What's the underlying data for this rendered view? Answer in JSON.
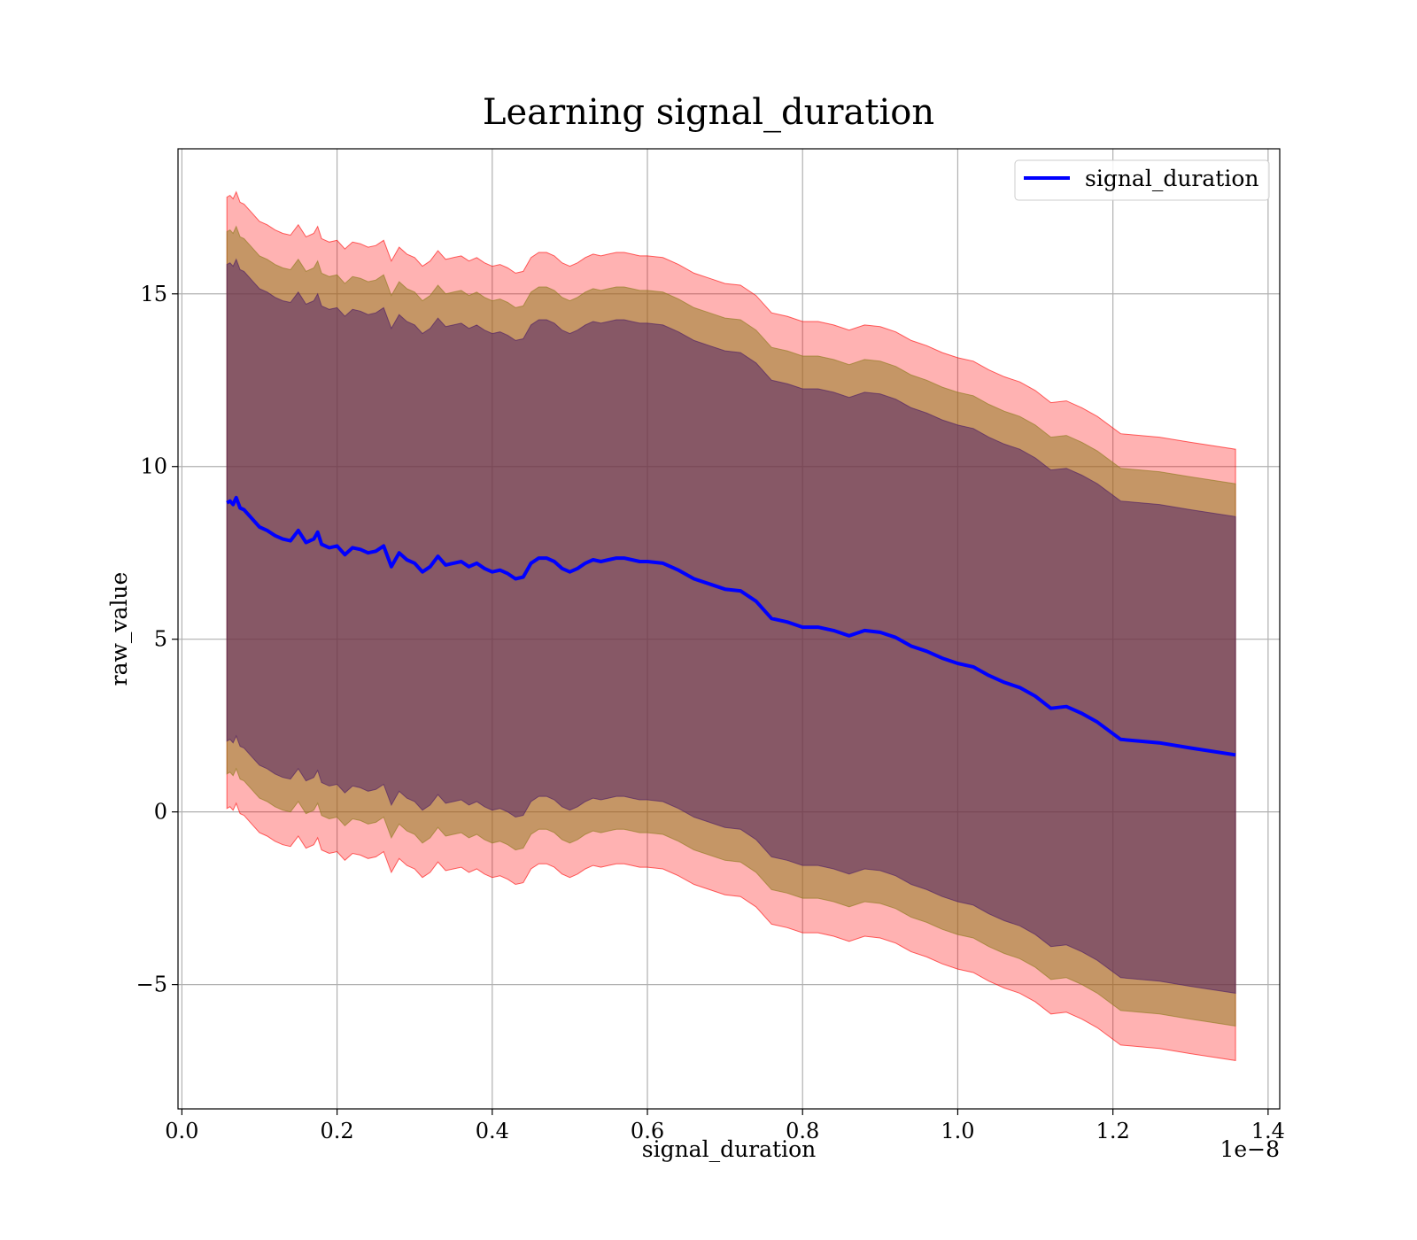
{
  "chart_data": {
    "type": "area",
    "title": "Learning signal_duration",
    "xlabel": "signal_duration",
    "ylabel": "raw_value",
    "x_offset_label": "1e−8",
    "xlim": [
      -0.005,
      1.415
    ],
    "ylim": [
      -8.6,
      19.2
    ],
    "xticks": [
      {
        "value": 0.0,
        "label": "0.0"
      },
      {
        "value": 0.2,
        "label": "0.2"
      },
      {
        "value": 0.4,
        "label": "0.4"
      },
      {
        "value": 0.6,
        "label": "0.6"
      },
      {
        "value": 0.8,
        "label": "0.8"
      },
      {
        "value": 1.0,
        "label": "1.0"
      },
      {
        "value": 1.2,
        "label": "1.2"
      },
      {
        "value": 1.4,
        "label": "1.4"
      }
    ],
    "yticks": [
      {
        "value": -5,
        "label": "−5"
      },
      {
        "value": 0,
        "label": "0"
      },
      {
        "value": 5,
        "label": "5"
      },
      {
        "value": 10,
        "label": "10"
      },
      {
        "value": 15,
        "label": "15"
      }
    ],
    "grid": true,
    "legend_position": "top-right",
    "colors": {
      "line": "#0000ff",
      "band_outer": "#ff0000",
      "band_middle": "#8c7a1a",
      "band_inner": "#4a1a66",
      "grid": "#b0b0b0"
    },
    "band_half_widths": {
      "inner": 6.9,
      "middle": 7.85,
      "outer": 8.85
    },
    "x": [
      0.058,
      0.062,
      0.066,
      0.07,
      0.075,
      0.08,
      0.09,
      0.1,
      0.11,
      0.12,
      0.13,
      0.14,
      0.15,
      0.16,
      0.17,
      0.175,
      0.18,
      0.19,
      0.2,
      0.21,
      0.22,
      0.23,
      0.24,
      0.25,
      0.26,
      0.27,
      0.28,
      0.29,
      0.3,
      0.31,
      0.32,
      0.33,
      0.34,
      0.35,
      0.36,
      0.37,
      0.38,
      0.39,
      0.4,
      0.41,
      0.42,
      0.43,
      0.44,
      0.45,
      0.46,
      0.47,
      0.48,
      0.49,
      0.5,
      0.51,
      0.52,
      0.53,
      0.54,
      0.55,
      0.56,
      0.57,
      0.58,
      0.59,
      0.6,
      0.62,
      0.64,
      0.66,
      0.68,
      0.7,
      0.72,
      0.74,
      0.76,
      0.78,
      0.8,
      0.82,
      0.84,
      0.86,
      0.88,
      0.9,
      0.92,
      0.94,
      0.96,
      0.98,
      1.0,
      1.02,
      1.04,
      1.06,
      1.08,
      1.1,
      1.12,
      1.14,
      1.16,
      1.18,
      1.21,
      1.26,
      1.3,
      1.358
    ],
    "series": [
      {
        "name": "signal_duration",
        "values": [
          8.95,
          9.0,
          8.9,
          9.1,
          8.8,
          8.75,
          8.5,
          8.25,
          8.15,
          8.0,
          7.9,
          7.85,
          8.15,
          7.8,
          7.9,
          8.1,
          7.75,
          7.65,
          7.7,
          7.45,
          7.65,
          7.6,
          7.5,
          7.55,
          7.7,
          7.1,
          7.5,
          7.3,
          7.2,
          6.95,
          7.1,
          7.4,
          7.15,
          7.2,
          7.25,
          7.1,
          7.2,
          7.05,
          6.95,
          7.0,
          6.9,
          6.75,
          6.8,
          7.2,
          7.35,
          7.35,
          7.25,
          7.05,
          6.95,
          7.05,
          7.2,
          7.3,
          7.25,
          7.3,
          7.35,
          7.35,
          7.3,
          7.25,
          7.25,
          7.2,
          7.0,
          6.75,
          6.6,
          6.45,
          6.4,
          6.1,
          5.6,
          5.5,
          5.35,
          5.35,
          5.25,
          5.1,
          5.25,
          5.2,
          5.05,
          4.8,
          4.65,
          4.45,
          4.3,
          4.2,
          3.95,
          3.75,
          3.6,
          3.35,
          3.0,
          3.05,
          2.85,
          2.6,
          2.1,
          2.0,
          1.85,
          1.65
        ]
      }
    ]
  }
}
